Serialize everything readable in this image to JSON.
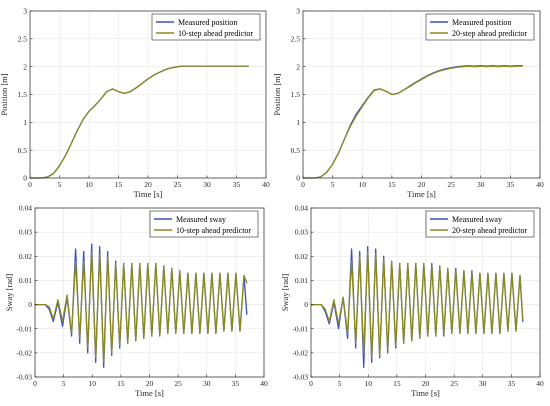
{
  "chart_data": [
    {
      "id": "p1",
      "type": "line",
      "xlabel": "Time [s]",
      "ylabel": "Position [m]",
      "xlim": [
        0,
        40
      ],
      "ylim": [
        0,
        3
      ],
      "xticks": [
        0,
        5,
        10,
        15,
        20,
        25,
        30,
        35,
        40
      ],
      "yticks": [
        0,
        0.5,
        1,
        1.5,
        2,
        2.5,
        3
      ],
      "grid": true,
      "legend": "top-right",
      "series": [
        {
          "name": "Measured position",
          "color": "#3b4fc4",
          "x": [
            0,
            2,
            3,
            4,
            5,
            6,
            7,
            8,
            9,
            10,
            11,
            12,
            13,
            14,
            15,
            16,
            17,
            18,
            19,
            20,
            21,
            22,
            23,
            24,
            25,
            26,
            27,
            28,
            30,
            32,
            34,
            37
          ],
          "y": [
            0,
            0,
            0.02,
            0.08,
            0.22,
            0.4,
            0.62,
            0.85,
            1.05,
            1.2,
            1.3,
            1.42,
            1.55,
            1.6,
            1.55,
            1.52,
            1.55,
            1.62,
            1.7,
            1.78,
            1.85,
            1.9,
            1.95,
            1.98,
            2.0,
            2.01,
            2.01,
            2.01,
            2.01,
            2.01,
            2.01,
            2.01
          ]
        },
        {
          "name": "10-step ahead predictor",
          "color": "#8a8a1e",
          "x": [
            0,
            2,
            3,
            4,
            5,
            6,
            7,
            8,
            9,
            10,
            11,
            12,
            13,
            14,
            15,
            16,
            17,
            18,
            19,
            20,
            21,
            22,
            23,
            24,
            25,
            26,
            27,
            28,
            30,
            32,
            34,
            37
          ],
          "y": [
            0,
            0,
            0.02,
            0.08,
            0.22,
            0.4,
            0.62,
            0.85,
            1.05,
            1.2,
            1.3,
            1.42,
            1.55,
            1.6,
            1.55,
            1.52,
            1.55,
            1.62,
            1.7,
            1.78,
            1.85,
            1.9,
            1.95,
            1.98,
            2.0,
            2.01,
            2.01,
            2.01,
            2.01,
            2.01,
            2.01,
            2.01
          ]
        }
      ]
    },
    {
      "id": "p2",
      "type": "line",
      "xlabel": "Time [s]",
      "ylabel": "Position [m]",
      "xlim": [
        0,
        40
      ],
      "ylim": [
        0,
        3
      ],
      "xticks": [
        0,
        5,
        10,
        15,
        20,
        25,
        30,
        35,
        40
      ],
      "yticks": [
        0,
        0.5,
        1,
        1.5,
        2,
        2.5,
        3
      ],
      "grid": true,
      "legend": "top-right",
      "series": [
        {
          "name": "Measured position",
          "color": "#3b4fc4",
          "x": [
            0,
            2,
            3,
            4,
            5,
            6,
            7,
            8,
            9,
            10,
            11,
            12,
            13,
            14,
            15,
            16,
            17,
            18,
            19,
            20,
            21,
            22,
            23,
            24,
            25,
            26,
            27,
            28,
            29,
            30,
            31,
            32,
            33,
            34,
            35,
            36,
            37
          ],
          "y": [
            0,
            0,
            0.02,
            0.1,
            0.25,
            0.45,
            0.7,
            0.95,
            1.15,
            1.3,
            1.45,
            1.58,
            1.6,
            1.56,
            1.5,
            1.52,
            1.58,
            1.65,
            1.72,
            1.78,
            1.84,
            1.89,
            1.93,
            1.96,
            1.98,
            2.0,
            2.01,
            2.02,
            2.01,
            2.02,
            2.01,
            2.02,
            2.01,
            2.02,
            2.01,
            2.02,
            2.02
          ]
        },
        {
          "name": "20-step ahead predictor",
          "color": "#8a8a1e",
          "x": [
            0,
            2,
            3,
            4,
            5,
            6,
            7,
            8,
            9,
            10,
            11,
            12,
            13,
            14,
            15,
            16,
            17,
            18,
            19,
            20,
            21,
            22,
            23,
            24,
            25,
            26,
            27,
            28,
            29,
            30,
            31,
            32,
            33,
            34,
            35,
            36,
            37
          ],
          "y": [
            0,
            0,
            0.02,
            0.1,
            0.25,
            0.45,
            0.7,
            0.93,
            1.12,
            1.28,
            1.44,
            1.57,
            1.6,
            1.56,
            1.5,
            1.52,
            1.58,
            1.64,
            1.71,
            1.77,
            1.83,
            1.88,
            1.92,
            1.95,
            1.97,
            1.99,
            2.0,
            2.01,
            2.0,
            2.01,
            2.0,
            2.01,
            2.0,
            2.01,
            2.0,
            2.01,
            2.01
          ]
        }
      ]
    },
    {
      "id": "p3",
      "type": "line",
      "xlabel": "Time [s]",
      "ylabel": "Sway [rad]",
      "xlim": [
        0,
        40
      ],
      "ylim": [
        -0.03,
        0.04
      ],
      "xticks": [
        0,
        5,
        10,
        15,
        20,
        25,
        30,
        35,
        40
      ],
      "yticks": [
        -0.03,
        -0.02,
        -0.01,
        0,
        0.01,
        0.02,
        0.03,
        0.04
      ],
      "grid": true,
      "legend": "top-right",
      "series": [
        {
          "name": "Measured sway",
          "color": "#3b4fc4",
          "x": [
            0,
            1,
            1.8,
            2.5,
            3.2,
            4,
            4.8,
            5.6,
            6.4,
            7.1,
            7.8,
            8.5,
            9.2,
            9.9,
            10.6,
            11.3,
            12,
            12.7,
            13.4,
            14.1,
            14.8,
            15.5,
            16.2,
            16.9,
            17.6,
            18.3,
            19,
            19.7,
            20.4,
            21.1,
            21.8,
            22.5,
            23.2,
            23.9,
            24.6,
            25.3,
            26,
            26.7,
            27.4,
            28.1,
            28.8,
            29.5,
            30.2,
            30.9,
            31.6,
            32.3,
            33,
            33.7,
            34.4,
            35.1,
            35.8,
            36.5,
            37
          ],
          "y": [
            0,
            0,
            0,
            -0.002,
            -0.007,
            0.001,
            -0.009,
            0.003,
            -0.013,
            0.023,
            -0.016,
            0.022,
            -0.02,
            0.025,
            -0.024,
            0.024,
            -0.026,
            0.022,
            -0.021,
            0.018,
            -0.018,
            0.017,
            -0.016,
            0.017,
            -0.015,
            0.017,
            -0.014,
            0.017,
            -0.013,
            0.017,
            -0.013,
            0.016,
            -0.012,
            0.015,
            -0.012,
            0.014,
            -0.012,
            0.013,
            -0.012,
            0.013,
            -0.012,
            0.013,
            -0.012,
            0.013,
            -0.012,
            0.013,
            -0.011,
            0.013,
            -0.011,
            0.013,
            -0.011,
            0.012,
            -0.004
          ]
        },
        {
          "name": "10-step ahead predictor",
          "color": "#8a8a1e",
          "x": [
            0,
            1,
            1.8,
            2.5,
            3.2,
            4,
            4.8,
            5.6,
            6.4,
            7.1,
            7.8,
            8.5,
            9.2,
            9.9,
            10.6,
            11.3,
            12,
            12.7,
            13.4,
            14.1,
            14.8,
            15.5,
            16.2,
            16.9,
            17.6,
            18.3,
            19,
            19.7,
            20.4,
            21.1,
            21.8,
            22.5,
            23.2,
            23.9,
            24.6,
            25.3,
            26,
            26.7,
            27.4,
            28.1,
            28.8,
            29.5,
            30.2,
            30.9,
            31.6,
            32.3,
            33,
            33.7,
            34.4,
            35.1,
            35.8,
            36.5,
            37
          ],
          "y": [
            0,
            0,
            0,
            -0.001,
            -0.006,
            0.002,
            -0.007,
            0.004,
            -0.012,
            0.018,
            -0.014,
            0.018,
            -0.018,
            0.022,
            -0.022,
            0.021,
            -0.024,
            0.02,
            -0.02,
            0.017,
            -0.017,
            0.017,
            -0.016,
            0.017,
            -0.015,
            0.017,
            -0.014,
            0.017,
            -0.013,
            0.017,
            -0.013,
            0.016,
            -0.012,
            0.015,
            -0.012,
            0.014,
            -0.012,
            0.013,
            -0.012,
            0.013,
            -0.012,
            0.013,
            -0.012,
            0.013,
            -0.012,
            0.013,
            -0.011,
            0.013,
            -0.011,
            0.013,
            -0.011,
            0.012,
            0.009
          ]
        }
      ]
    },
    {
      "id": "p4",
      "type": "line",
      "xlabel": "Time [s]",
      "ylabel": "Sway [rad]",
      "xlim": [
        0,
        40
      ],
      "ylim": [
        -0.03,
        0.04
      ],
      "xticks": [
        0,
        5,
        10,
        15,
        20,
        25,
        30,
        35,
        40
      ],
      "yticks": [
        -0.03,
        -0.02,
        -0.01,
        0,
        0.01,
        0.02,
        0.03,
        0.04
      ],
      "grid": true,
      "legend": "top-right",
      "series": [
        {
          "name": "Measured sway",
          "color": "#3b4fc4",
          "x": [
            0,
            1,
            1.8,
            2.5,
            3.2,
            4,
            4.8,
            5.6,
            6.4,
            7.1,
            7.8,
            8.5,
            9.2,
            9.9,
            10.6,
            11.3,
            12,
            12.7,
            13.4,
            14.1,
            14.8,
            15.5,
            16.2,
            16.9,
            17.6,
            18.3,
            19,
            19.7,
            20.4,
            21.1,
            21.8,
            22.5,
            23.2,
            23.9,
            24.6,
            25.3,
            26,
            26.7,
            27.4,
            28.1,
            28.8,
            29.5,
            30.2,
            30.9,
            31.6,
            32.3,
            33,
            33.7,
            34.4,
            35.1,
            35.8,
            36.5,
            37
          ],
          "y": [
            0,
            0,
            0,
            -0.003,
            -0.008,
            0.001,
            -0.01,
            0.003,
            -0.014,
            0.023,
            -0.018,
            0.022,
            -0.026,
            0.024,
            -0.024,
            0.023,
            -0.022,
            0.02,
            -0.02,
            0.018,
            -0.018,
            0.017,
            -0.016,
            0.017,
            -0.015,
            0.017,
            -0.014,
            0.017,
            -0.013,
            0.017,
            -0.013,
            0.016,
            -0.013,
            0.015,
            -0.012,
            0.015,
            -0.012,
            0.014,
            -0.012,
            0.014,
            -0.012,
            0.013,
            -0.012,
            0.013,
            -0.012,
            0.013,
            -0.012,
            0.013,
            -0.011,
            0.013,
            -0.011,
            0.012,
            -0.007
          ]
        },
        {
          "name": "20-step ahead predictor",
          "color": "#8a8a1e",
          "x": [
            0,
            1,
            1.8,
            2.5,
            3.2,
            4,
            4.8,
            5.6,
            6.4,
            7.1,
            7.8,
            8.5,
            9.2,
            9.9,
            10.6,
            11.3,
            12,
            12.7,
            13.4,
            14.1,
            14.8,
            15.5,
            16.2,
            16.9,
            17.6,
            18.3,
            19,
            19.7,
            20.4,
            21.1,
            21.8,
            22.5,
            23.2,
            23.9,
            24.6,
            25.3,
            26,
            26.7,
            27.4,
            28.1,
            28.8,
            29.5,
            30.2,
            30.9,
            31.6,
            32.3,
            33,
            33.7,
            34.4,
            35.1,
            35.8,
            36.5,
            37
          ],
          "y": [
            0,
            0,
            0,
            -0.002,
            -0.007,
            0.002,
            -0.008,
            0.003,
            -0.012,
            0.018,
            -0.016,
            0.02,
            -0.02,
            0.022,
            -0.022,
            0.021,
            -0.021,
            0.019,
            -0.019,
            0.018,
            -0.017,
            0.017,
            -0.016,
            0.017,
            -0.015,
            0.017,
            -0.014,
            0.017,
            -0.013,
            0.016,
            -0.013,
            0.016,
            -0.012,
            0.015,
            -0.012,
            0.014,
            -0.012,
            0.014,
            -0.012,
            0.013,
            -0.012,
            0.013,
            -0.012,
            0.013,
            -0.012,
            0.013,
            -0.012,
            0.013,
            -0.011,
            0.013,
            -0.011,
            0.012,
            -0.006
          ]
        }
      ]
    }
  ]
}
